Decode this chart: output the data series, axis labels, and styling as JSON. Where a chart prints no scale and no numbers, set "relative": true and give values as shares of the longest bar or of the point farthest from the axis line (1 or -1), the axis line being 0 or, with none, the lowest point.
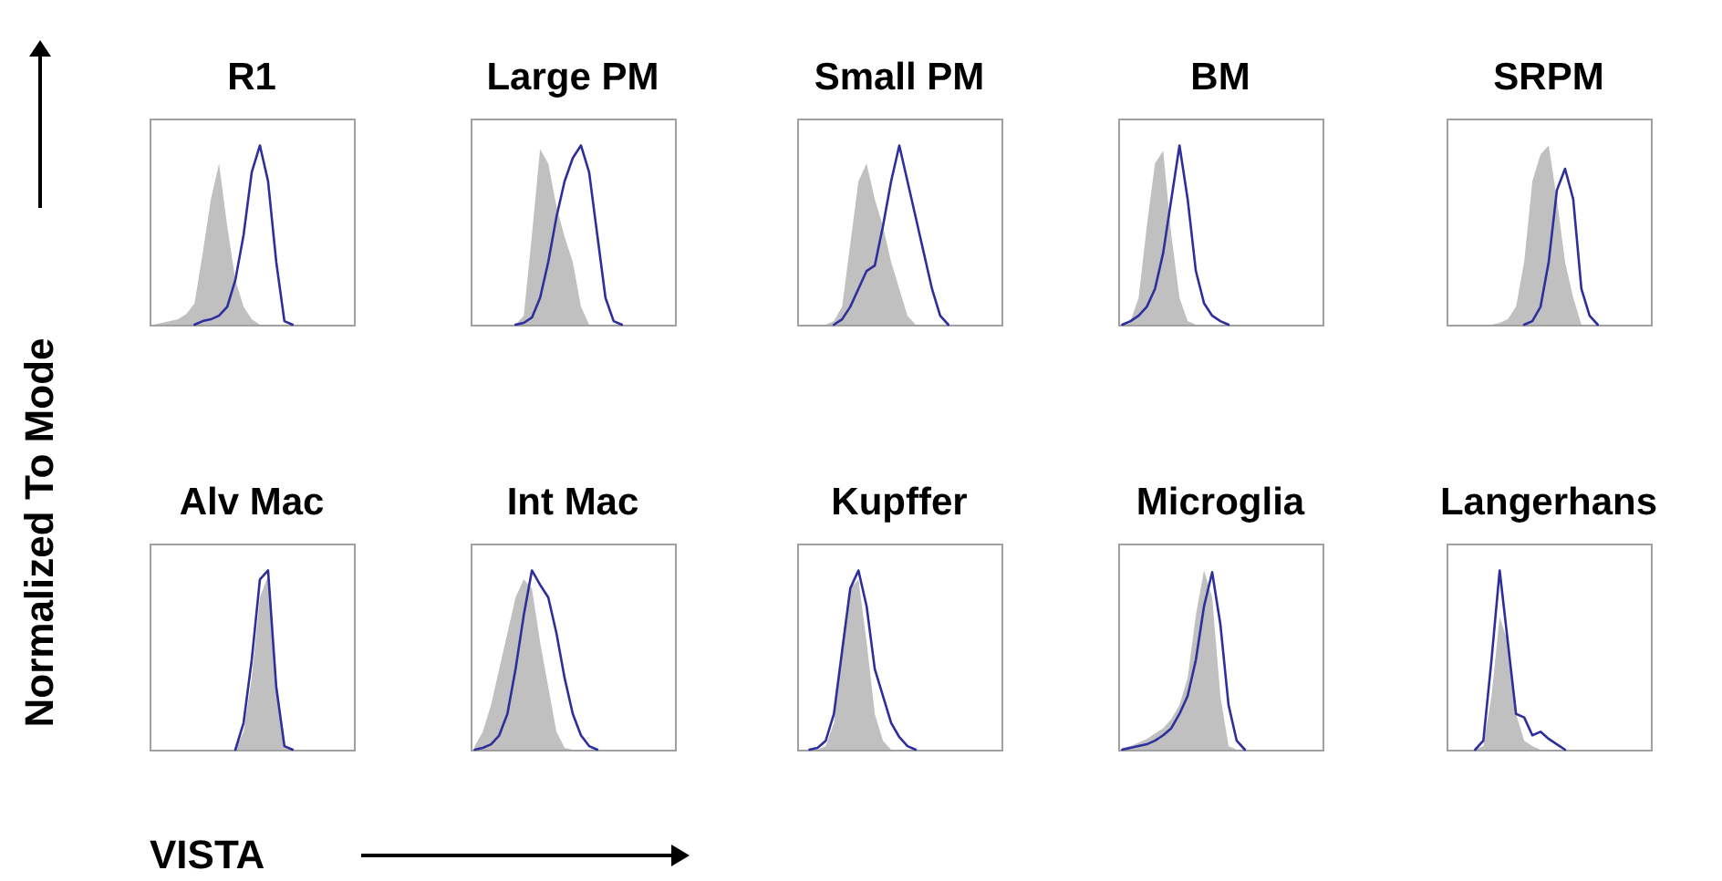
{
  "chart_data": [
    {
      "type": "area",
      "title": "R1",
      "ylabel": "Normalized To Mode",
      "relative": true,
      "categories": [
        null,
        null,
        null,
        null,
        null,
        null,
        null,
        null,
        null,
        null,
        null,
        null,
        null,
        null,
        null,
        null,
        null,
        null,
        null,
        null,
        null,
        null,
        null,
        null,
        null
      ],
      "series": [
        {
          "color": "#c0c0c0",
          "values": [
            0,
            0.01,
            0.02,
            0.03,
            0.06,
            0.12,
            0.4,
            0.7,
            0.9,
            0.55,
            0.25,
            0.1,
            0.03,
            0,
            null,
            null,
            null,
            null,
            null,
            null,
            null,
            null,
            null,
            null,
            null
          ]
        },
        {
          "type": "line",
          "color": "#2e2e9c",
          "values": [
            null,
            null,
            null,
            null,
            null,
            0,
            0.02,
            0.03,
            0.05,
            0.1,
            0.25,
            0.5,
            0.85,
            1,
            0.8,
            0.35,
            0.02,
            0,
            null,
            null,
            null,
            null,
            null,
            null,
            null
          ]
        }
      ]
    },
    {
      "type": "area",
      "title": "Large PM",
      "relative": true,
      "categories": [
        null,
        null,
        null,
        null,
        null,
        null,
        null,
        null,
        null,
        null,
        null,
        null,
        null,
        null,
        null,
        null,
        null,
        null,
        null,
        null,
        null,
        null,
        null,
        null,
        null
      ],
      "series": [
        {
          "color": "#c0c0c0",
          "values": [
            null,
            null,
            null,
            null,
            null,
            0,
            0.05,
            0.5,
            0.98,
            0.9,
            0.66,
            0.49,
            0.35,
            0.1,
            0,
            null,
            null,
            null,
            null,
            null,
            null,
            null,
            null,
            null,
            null
          ]
        },
        {
          "type": "line",
          "color": "#2e2e9c",
          "values": [
            null,
            null,
            null,
            null,
            null,
            0,
            0.01,
            0.04,
            0.15,
            0.35,
            0.6,
            0.8,
            0.93,
            1,
            0.85,
            0.5,
            0.15,
            0.02,
            0,
            null,
            null,
            null,
            null,
            null,
            null
          ]
        }
      ]
    },
    {
      "type": "area",
      "title": "Small PM",
      "relative": true,
      "categories": [
        null,
        null,
        null,
        null,
        null,
        null,
        null,
        null,
        null,
        null,
        null,
        null,
        null,
        null,
        null,
        null,
        null,
        null,
        null,
        null,
        null,
        null,
        null,
        null,
        null
      ],
      "series": [
        {
          "color": "#c0c0c0",
          "values": [
            null,
            null,
            null,
            0,
            0.02,
            0.1,
            0.45,
            0.8,
            0.9,
            0.7,
            0.55,
            0.35,
            0.2,
            0.05,
            0,
            null,
            null,
            null,
            null,
            null,
            null,
            null,
            null,
            null,
            null
          ]
        },
        {
          "type": "line",
          "color": "#2e2e9c",
          "values": [
            null,
            null,
            null,
            null,
            0,
            0.03,
            0.1,
            0.2,
            0.3,
            0.33,
            0.55,
            0.8,
            1,
            0.8,
            0.6,
            0.4,
            0.2,
            0.05,
            0,
            null,
            null,
            null,
            null,
            null,
            null
          ]
        }
      ]
    },
    {
      "type": "area",
      "title": "BM",
      "relative": true,
      "categories": [
        null,
        null,
        null,
        null,
        null,
        null,
        null,
        null,
        null,
        null,
        null,
        null,
        null,
        null,
        null,
        null,
        null,
        null,
        null,
        null,
        null,
        null,
        null,
        null,
        null
      ],
      "series": [
        {
          "color": "#c0c0c0",
          "values": [
            0,
            0.02,
            0.15,
            0.55,
            0.9,
            0.97,
            0.5,
            0.15,
            0.02,
            0,
            null,
            null,
            null,
            null,
            null,
            null,
            null,
            null,
            null,
            null,
            null,
            null,
            null,
            null,
            null
          ]
        },
        {
          "type": "line",
          "color": "#2e2e9c",
          "values": [
            0,
            0.02,
            0.05,
            0.1,
            0.2,
            0.4,
            0.7,
            1,
            0.7,
            0.3,
            0.12,
            0.05,
            0.02,
            0,
            null,
            null,
            null,
            null,
            null,
            null,
            null,
            null,
            null,
            null,
            null
          ]
        }
      ]
    },
    {
      "type": "area",
      "title": "SRPM",
      "relative": true,
      "categories": [
        null,
        null,
        null,
        null,
        null,
        null,
        null,
        null,
        null,
        null,
        null,
        null,
        null,
        null,
        null,
        null,
        null,
        null,
        null,
        null,
        null,
        null,
        null,
        null,
        null
      ],
      "series": [
        {
          "color": "#c0c0c0",
          "values": [
            null,
            null,
            null,
            null,
            null,
            0,
            0.01,
            0.03,
            0.1,
            0.35,
            0.8,
            0.95,
            1,
            0.7,
            0.35,
            0.15,
            0,
            null,
            null,
            null,
            null,
            null,
            null,
            null,
            null
          ]
        },
        {
          "type": "line",
          "color": "#2e2e9c",
          "values": [
            null,
            null,
            null,
            null,
            null,
            null,
            null,
            null,
            null,
            0,
            0.02,
            0.1,
            0.35,
            0.75,
            0.87,
            0.7,
            0.2,
            0.05,
            0,
            null,
            null,
            null,
            null,
            null,
            null
          ]
        }
      ]
    },
    {
      "type": "area",
      "title": "Alv Mac",
      "xlabel": "VISTA",
      "relative": true,
      "categories": [
        null,
        null,
        null,
        null,
        null,
        null,
        null,
        null,
        null,
        null,
        null,
        null,
        null,
        null,
        null,
        null,
        null,
        null,
        null,
        null,
        null,
        null,
        null,
        null,
        null
      ],
      "series": [
        {
          "color": "#c0c0c0",
          "values": [
            null,
            null,
            null,
            null,
            null,
            null,
            null,
            null,
            null,
            null,
            0,
            0.1,
            0.4,
            0.85,
            0.97,
            0.4,
            0.02,
            0,
            null,
            null,
            null,
            null,
            null,
            null,
            null
          ]
        },
        {
          "type": "line",
          "color": "#2e2e9c",
          "values": [
            null,
            null,
            null,
            null,
            null,
            null,
            null,
            null,
            null,
            null,
            0,
            0.15,
            0.5,
            0.95,
            1,
            0.35,
            0.02,
            0,
            null,
            null,
            null,
            null,
            null,
            null,
            null
          ]
        }
      ]
    },
    {
      "type": "area",
      "title": "Int Mac",
      "relative": true,
      "categories": [
        null,
        null,
        null,
        null,
        null,
        null,
        null,
        null,
        null,
        null,
        null,
        null,
        null,
        null,
        null,
        null,
        null,
        null,
        null,
        null,
        null,
        null,
        null,
        null,
        null
      ],
      "series": [
        {
          "color": "#c0c0c0",
          "values": [
            0.02,
            0.1,
            0.25,
            0.45,
            0.65,
            0.85,
            0.95,
            0.9,
            0.6,
            0.35,
            0.1,
            0.01,
            0,
            null,
            null,
            null,
            null,
            null,
            null,
            null,
            null,
            null,
            null,
            null,
            null
          ]
        },
        {
          "type": "line",
          "color": "#2e2e9c",
          "values": [
            0,
            0.01,
            0.03,
            0.08,
            0.2,
            0.45,
            0.75,
            1,
            0.92,
            0.85,
            0.65,
            0.4,
            0.2,
            0.08,
            0.02,
            0,
            null,
            null,
            null,
            null,
            null,
            null,
            null,
            null,
            null
          ]
        }
      ]
    },
    {
      "type": "area",
      "title": "Kupffer",
      "relative": true,
      "categories": [
        null,
        null,
        null,
        null,
        null,
        null,
        null,
        null,
        null,
        null,
        null,
        null,
        null,
        null,
        null,
        null,
        null,
        null,
        null,
        null,
        null,
        null,
        null,
        null,
        null
      ],
      "series": [
        {
          "color": "#c0c0c0",
          "values": [
            null,
            null,
            0,
            0.02,
            0.15,
            0.6,
            0.9,
            0.95,
            0.6,
            0.2,
            0.05,
            0,
            null,
            null,
            null,
            null,
            null,
            null,
            null,
            null,
            null,
            null,
            null,
            null,
            null
          ]
        },
        {
          "type": "line",
          "color": "#2e2e9c",
          "values": [
            null,
            0,
            0.01,
            0.05,
            0.2,
            0.55,
            0.9,
            1,
            0.8,
            0.45,
            0.3,
            0.15,
            0.07,
            0.02,
            0,
            null,
            null,
            null,
            null,
            null,
            null,
            null,
            null,
            null,
            null
          ]
        }
      ]
    },
    {
      "type": "area",
      "title": "Microglia",
      "relative": true,
      "categories": [
        null,
        null,
        null,
        null,
        null,
        null,
        null,
        null,
        null,
        null,
        null,
        null,
        null,
        null,
        null,
        null,
        null,
        null,
        null,
        null,
        null,
        null,
        null,
        null,
        null
      ],
      "series": [
        {
          "color": "#c0c0c0",
          "values": [
            0.01,
            0.02,
            0.04,
            0.06,
            0.09,
            0.12,
            0.17,
            0.25,
            0.4,
            0.75,
            1,
            0.85,
            0.3,
            0.02,
            0,
            null,
            null,
            null,
            null,
            null,
            null,
            null,
            null,
            null,
            null
          ]
        },
        {
          "type": "line",
          "color": "#2e2e9c",
          "values": [
            0,
            0.01,
            0.02,
            0.03,
            0.05,
            0.08,
            0.12,
            0.2,
            0.3,
            0.5,
            0.8,
            0.99,
            0.7,
            0.25,
            0.05,
            0,
            null,
            null,
            null,
            null,
            null,
            null,
            null,
            null,
            null
          ]
        }
      ]
    },
    {
      "type": "area",
      "title": "Langerhans",
      "relative": true,
      "categories": [
        null,
        null,
        null,
        null,
        null,
        null,
        null,
        null,
        null,
        null,
        null,
        null,
        null,
        null,
        null,
        null,
        null,
        null,
        null,
        null,
        null,
        null,
        null,
        null,
        null
      ],
      "series": [
        {
          "color": "#c0c0c0",
          "values": [
            null,
            null,
            null,
            0,
            0.02,
            0.3,
            0.74,
            0.6,
            0.2,
            0.05,
            0.02,
            0,
            null,
            null,
            null,
            null,
            null,
            null,
            null,
            null,
            null,
            null,
            null,
            null,
            null
          ]
        },
        {
          "type": "line",
          "color": "#2e2e9c",
          "values": [
            null,
            null,
            null,
            0,
            0.05,
            0.5,
            1,
            0.6,
            0.2,
            0.18,
            0.08,
            0.1,
            0.06,
            0.03,
            0,
            null,
            null,
            null,
            null,
            null,
            null,
            null,
            null,
            null,
            null
          ]
        }
      ]
    }
  ]
}
